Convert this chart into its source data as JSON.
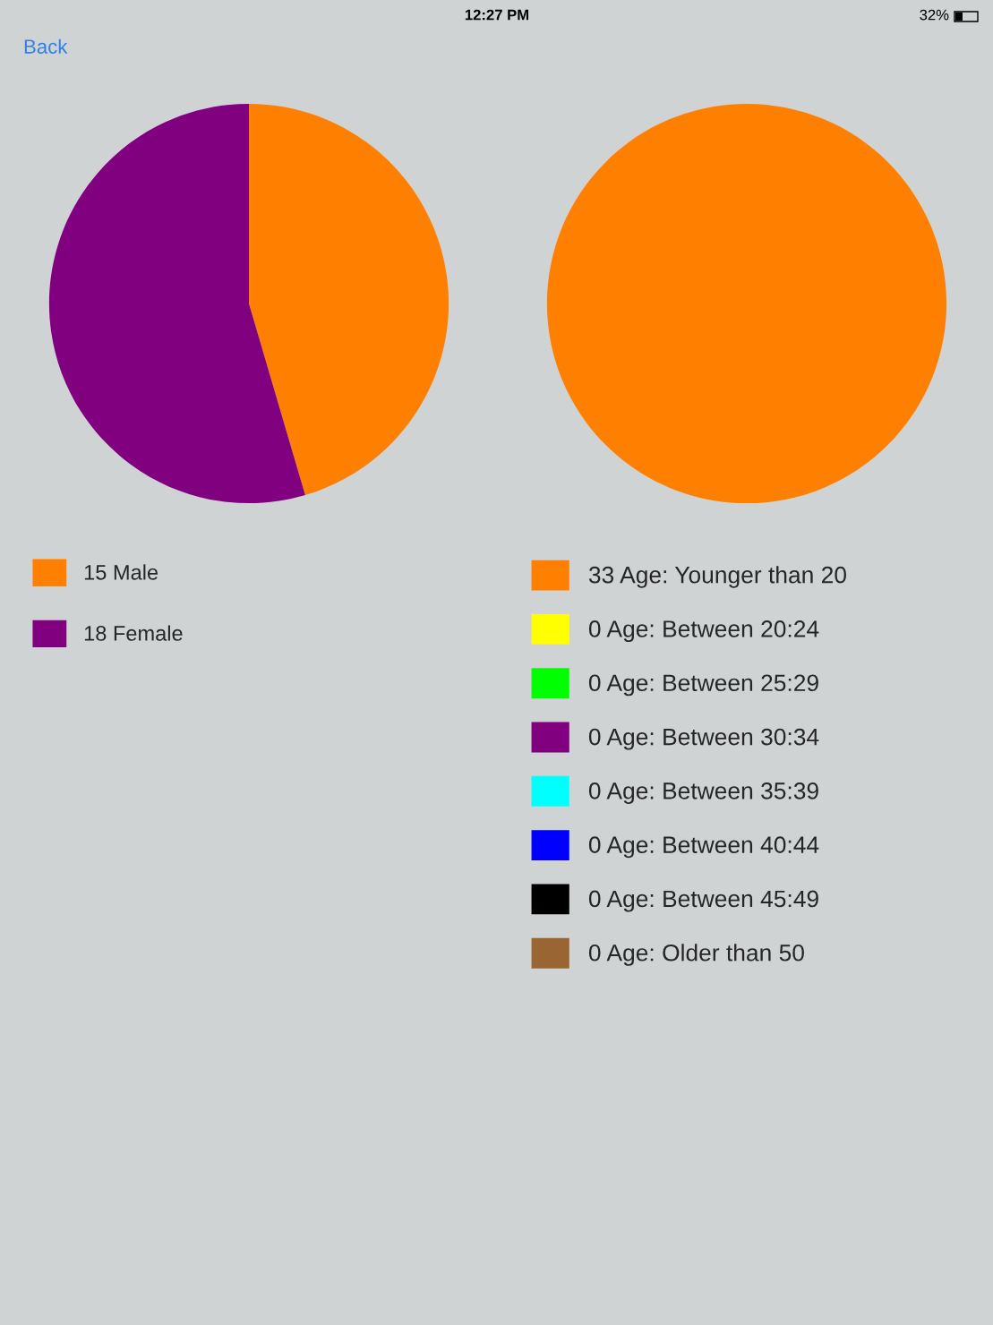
{
  "chart_data": [
    {
      "type": "pie",
      "categories": [
        "15 Male",
        "18 Female"
      ],
      "values": [
        15,
        18
      ],
      "colors": [
        "#ff8000",
        "#800080"
      ],
      "legend": "bottom",
      "annotations": [
        "12:27 PM",
        "32%",
        "Back"
      ]
    },
    {
      "type": "pie",
      "categories": [
        "33 Age: Younger than 20",
        "0 Age: Between 20:24",
        "0 Age: Between 25:29",
        "0 Age: Between 30:34",
        "0 Age: Between 35:39",
        "0 Age: Between 40:44",
        "0 Age: Between 45:49",
        "0 Age: Older than 50"
      ],
      "values": [
        33,
        0,
        0,
        0,
        0,
        0,
        0,
        0
      ],
      "colors": [
        "#ff8000",
        "#ffff00",
        "#00ff00",
        "#800080",
        "#00ffff",
        "#0000ff",
        "#000000",
        "#996633"
      ],
      "legend": "bottom"
    }
  ]
}
